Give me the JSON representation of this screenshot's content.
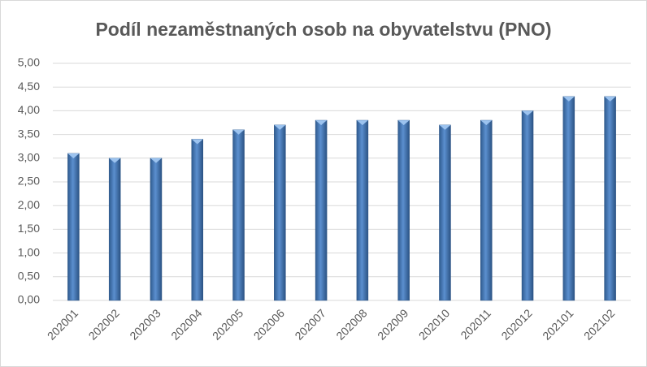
{
  "chart_data": {
    "type": "bar",
    "title": "Podíl nezaměstnaných osob na obyvatelstvu (PNO)",
    "categories": [
      "202001",
      "202002",
      "202003",
      "202004",
      "202005",
      "202006",
      "202007",
      "202008",
      "202009",
      "202010",
      "202011",
      "202012",
      "202101",
      "202102"
    ],
    "values": [
      3.1,
      3.0,
      3.0,
      3.4,
      3.6,
      3.7,
      3.8,
      3.8,
      3.8,
      3.7,
      3.8,
      4.0,
      4.3,
      4.3
    ],
    "color": "#4f81bd",
    "ylim": [
      0,
      5
    ],
    "yticks": [
      {
        "value": 0,
        "label": "0,00"
      },
      {
        "value": 0.5,
        "label": "0,50"
      },
      {
        "value": 1,
        "label": "1,00"
      },
      {
        "value": 1.5,
        "label": "1,50"
      },
      {
        "value": 2,
        "label": "2,00"
      },
      {
        "value": 2.5,
        "label": "2,50"
      },
      {
        "value": 3,
        "label": "3,00"
      },
      {
        "value": 3.5,
        "label": "3,50"
      },
      {
        "value": 4,
        "label": "4,00"
      },
      {
        "value": 4.5,
        "label": "4,50"
      },
      {
        "value": 5,
        "label": "5,00"
      }
    ],
    "grid": true
  }
}
